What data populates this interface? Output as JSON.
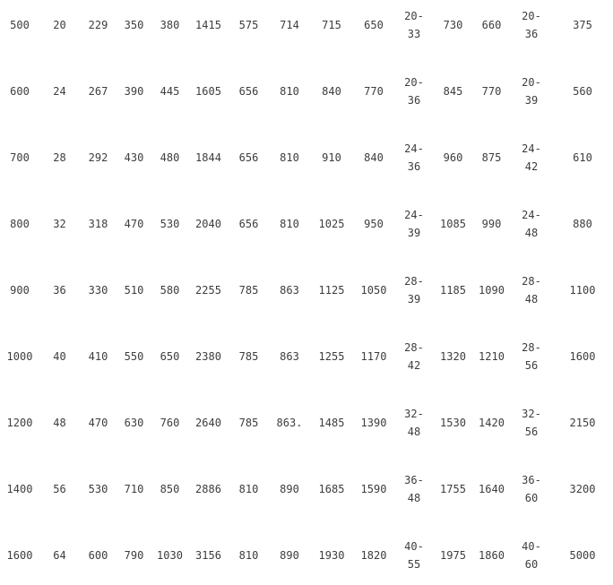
{
  "chart_data": {
    "type": "table",
    "title": "",
    "grid": "off",
    "header": [],
    "rows": [
      [
        "500",
        "20",
        "229",
        "350",
        "380",
        "1415",
        "575",
        "714",
        "715",
        "650",
        "20-\n33",
        "730",
        "660",
        "20-\n36",
        "375"
      ],
      [
        "600",
        "24",
        "267",
        "390",
        "445",
        "1605",
        "656",
        "810",
        "840",
        "770",
        "20-\n36",
        "845",
        "770",
        "20-\n39",
        "560"
      ],
      [
        "700",
        "28",
        "292",
        "430",
        "480",
        "1844",
        "656",
        "810",
        "910",
        "840",
        "24-\n36",
        "960",
        "875",
        "24-\n42",
        "610"
      ],
      [
        "800",
        "32",
        "318",
        "470",
        "530",
        "2040",
        "656",
        "810",
        "1025",
        "950",
        "24-\n39",
        "1085",
        "990",
        "24-\n48",
        "880"
      ],
      [
        "900",
        "36",
        "330",
        "510",
        "580",
        "2255",
        "785",
        "863",
        "1125",
        "1050",
        "28-\n39",
        "1185",
        "1090",
        "28-\n48",
        "1100"
      ],
      [
        "1000",
        "40",
        "410",
        "550",
        "650",
        "2380",
        "785",
        "863",
        "1255",
        "1170",
        "28-\n42",
        "1320",
        "1210",
        "28-\n56",
        "1600"
      ],
      [
        "1200",
        "48",
        "470",
        "630",
        "760",
        "2640",
        "785",
        "863.",
        "1485",
        "1390",
        "32-\n48",
        "1530",
        "1420",
        "32-\n56",
        "2150"
      ],
      [
        "1400",
        "56",
        "530",
        "710",
        "850",
        "2886",
        "810",
        "890",
        "1685",
        "1590",
        "36-\n48",
        "1755",
        "1640",
        "36-\n60",
        "3200"
      ],
      [
        "1600",
        "64",
        "600",
        "790",
        "1030",
        "3156",
        "810",
        "890",
        "1930",
        "1820",
        "40-\n55",
        "1975",
        "1860",
        "40-\n60",
        "5000"
      ]
    ]
  },
  "colors": {
    "text": "#3d3d3d",
    "background": "#ffffff"
  }
}
